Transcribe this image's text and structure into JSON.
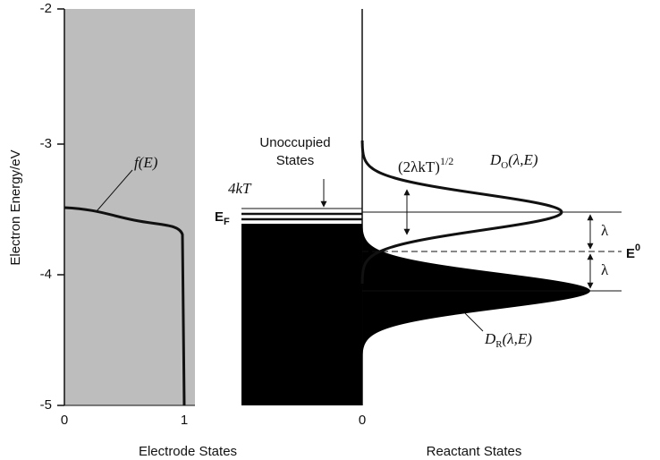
{
  "y_axis": {
    "label": "Electron Energy/eV",
    "ticks": [
      "-2",
      "-3",
      "-4",
      "-5"
    ]
  },
  "electrode": {
    "ticks": [
      "0",
      "1"
    ],
    "label": "Electrode States",
    "fermi_function": "f(E)",
    "unoccupied": [
      "Unoccupied",
      "States"
    ],
    "thermal_width": "4kT",
    "fermi_level": "E",
    "fermi_sub": "F"
  },
  "reactant": {
    "tick": "0",
    "label": "Reactant States",
    "width": "(2λkT)",
    "width_exp": "1/2",
    "oxidized": "D",
    "oxidized_sub": "O",
    "oxidized_args": "(λ,E)",
    "reduced": "D",
    "reduced_sub": "R",
    "reduced_args": "(λ,E)",
    "reorg": "λ",
    "reorg2": "λ",
    "standard": "E",
    "standard_sup": "0"
  }
}
